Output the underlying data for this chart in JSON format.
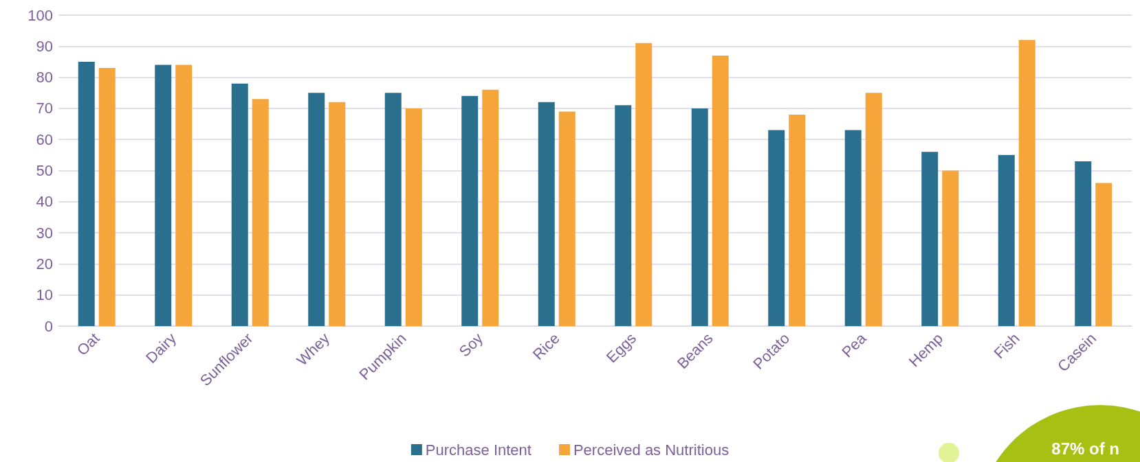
{
  "chart_data": {
    "type": "bar",
    "categories": [
      "Oat",
      "Dairy",
      "Sunflower",
      "Whey",
      "Pumpkin",
      "Soy",
      "Rice",
      "Eggs",
      "Beans",
      "Potato",
      "Pea",
      "Hemp",
      "Fish",
      "Casein"
    ],
    "series": [
      {
        "name": "Purchase Intent",
        "color": "#2a6f8e",
        "values": [
          85,
          84,
          78,
          75,
          75,
          74,
          72,
          71,
          70,
          63,
          63,
          56,
          55,
          53
        ]
      },
      {
        "name": "Perceived as Nutritious",
        "color": "#f6a53a",
        "values": [
          83,
          84,
          73,
          72,
          70,
          76,
          69,
          91,
          87,
          68,
          75,
          50,
          92,
          46
        ]
      }
    ],
    "ylim": [
      0,
      100
    ],
    "yticks": [
      0,
      10,
      20,
      30,
      40,
      50,
      60,
      70,
      80,
      90,
      100
    ],
    "grid": "y",
    "legend": "bottom",
    "annotations": [
      "87% of n"
    ]
  }
}
